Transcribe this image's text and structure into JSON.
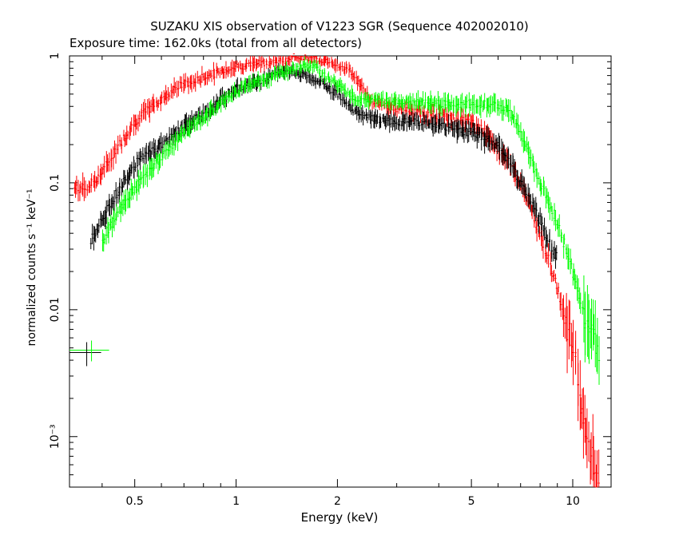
{
  "chart_data": {
    "type": "scatter",
    "title": "SUZAKU XIS observation of V1223 SGR (Sequence 402002010)",
    "subtitle": "Exposure time: 162.0ks (total from all detectors)",
    "xlabel": "Energy (keV)",
    "ylabel": "normalized counts s⁻¹ keV⁻¹",
    "x_scale": "log",
    "y_scale": "log",
    "xlim": [
      0.32,
      13.0
    ],
    "ylim": [
      0.0004,
      1.0
    ],
    "grid": false,
    "x_ticks": [
      {
        "value": 0.5,
        "label": "0.5"
      },
      {
        "value": 1,
        "label": "1"
      },
      {
        "value": 2,
        "label": "2"
      },
      {
        "value": 5,
        "label": "5"
      },
      {
        "value": 10,
        "label": "10"
      }
    ],
    "y_ticks": [
      {
        "value": 1,
        "label": "1"
      },
      {
        "value": 0.1,
        "label": "0.1"
      },
      {
        "value": 0.01,
        "label": "0.01"
      },
      {
        "value": 0.001,
        "label": "10⁻³"
      }
    ],
    "series": [
      {
        "color": "#ff0000",
        "x": [
          0.33,
          0.36,
          0.4,
          0.45,
          0.5,
          0.55,
          0.6,
          0.65,
          0.7,
          0.75,
          0.8,
          0.9,
          1.0,
          1.2,
          1.4,
          1.5,
          1.7,
          1.9,
          2.0,
          2.2,
          2.5,
          3.0,
          3.5,
          4.0,
          5.0,
          5.5,
          6.0,
          6.5,
          7.0,
          8.0,
          9.0,
          10.0,
          11.0,
          12.0
        ],
        "y": [
          0.09,
          0.09,
          0.12,
          0.2,
          0.3,
          0.38,
          0.45,
          0.55,
          0.6,
          0.62,
          0.68,
          0.75,
          0.82,
          0.88,
          0.92,
          1.0,
          0.95,
          0.9,
          0.85,
          0.75,
          0.45,
          0.38,
          0.36,
          0.34,
          0.3,
          0.25,
          0.18,
          0.14,
          0.1,
          0.04,
          0.015,
          0.005,
          0.001,
          0.0004
        ]
      },
      {
        "color": "#000000",
        "x": [
          0.37,
          0.4,
          0.45,
          0.5,
          0.55,
          0.6,
          0.7,
          0.8,
          0.9,
          1.0,
          1.2,
          1.4,
          1.6,
          1.8,
          2.0,
          2.3,
          2.5,
          3.0,
          3.5,
          4.0,
          5.0,
          6.0,
          6.5,
          7.0,
          8.0,
          9.0
        ],
        "y": [
          0.035,
          0.05,
          0.09,
          0.14,
          0.17,
          0.2,
          0.28,
          0.35,
          0.45,
          0.55,
          0.65,
          0.78,
          0.7,
          0.6,
          0.5,
          0.35,
          0.32,
          0.3,
          0.3,
          0.28,
          0.25,
          0.2,
          0.15,
          0.1,
          0.05,
          0.025
        ]
      },
      {
        "color": "#00ff00",
        "x": [
          0.4,
          0.45,
          0.5,
          0.55,
          0.6,
          0.7,
          0.8,
          0.9,
          1.0,
          1.2,
          1.4,
          1.5,
          1.7,
          1.8,
          2.0,
          2.3,
          2.5,
          3.0,
          3.5,
          4.0,
          5.0,
          6.0,
          6.5,
          7.0,
          8.0,
          9.0,
          10.0,
          11.0,
          12.0
        ],
        "y": [
          0.035,
          0.06,
          0.09,
          0.12,
          0.16,
          0.25,
          0.33,
          0.42,
          0.52,
          0.65,
          0.75,
          0.8,
          0.85,
          0.72,
          0.6,
          0.45,
          0.45,
          0.44,
          0.43,
          0.42,
          0.42,
          0.4,
          0.38,
          0.25,
          0.1,
          0.05,
          0.02,
          0.008,
          0.005
        ]
      }
    ],
    "legend_marker": {
      "x": 0.36,
      "y": 0.0048,
      "color": "#00ff00"
    }
  }
}
